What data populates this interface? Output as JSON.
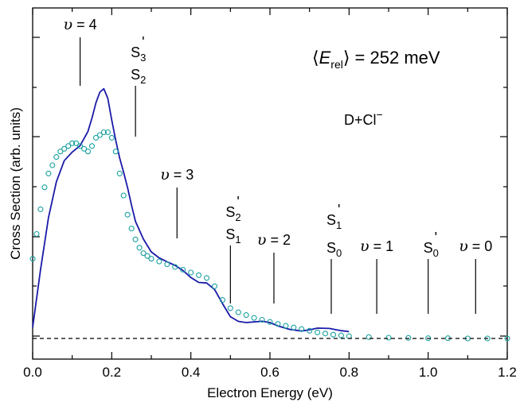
{
  "chart_data": {
    "type": "line",
    "xlabel": "Electron Energy (eV)",
    "ylabel": "Cross Section (arb. units)",
    "xlim": [
      0.0,
      1.2
    ],
    "ylim": [
      0,
      1
    ],
    "x_ticks": [
      "0.0",
      "0.2",
      "0.4",
      "0.6",
      "0.8",
      "1.0",
      "1.2"
    ],
    "y_ticklabels": "none",
    "grid": false,
    "legend": "none",
    "annotations": {
      "energy_prefix": "⟨",
      "energy_symbol": "E",
      "energy_sub": "rel",
      "energy_suffix": "⟩ = 252 meV",
      "reaction_base": "D+Cl",
      "reaction_sup": "−",
      "greek": "υ",
      "marks": [
        {
          "x": 0.12,
          "top": "v",
          "top_val": "4",
          "top_x": 0.12
        },
        {
          "x": 0.26,
          "stack": [
            [
              "S",
              "3",
              "'"
            ],
            [
              "S",
              "2",
              ""
            ]
          ]
        },
        {
          "x": 0.365,
          "top": "v",
          "top_val": "3",
          "top_x": 0.365
        },
        {
          "x": 0.5,
          "stack": [
            [
              "S",
              "2",
              "'"
            ],
            [
              "S",
              "1",
              ""
            ]
          ]
        },
        {
          "x": 0.61,
          "top": "v",
          "top_val": "2",
          "top_x": 0.61
        },
        {
          "x": 0.755,
          "stack": [
            [
              "S",
              "1",
              "'"
            ],
            [
              "S",
              "0",
              ""
            ]
          ]
        },
        {
          "x": 0.87,
          "top": "v",
          "top_val": "1",
          "top_x": 0.87
        },
        {
          "x": 1.0,
          "stack": [
            [
              "S",
              "0",
              "'"
            ]
          ]
        },
        {
          "x": 1.12,
          "top": "v",
          "top_val": "0",
          "top_x": 1.12
        }
      ]
    },
    "series": [
      {
        "style": "solid-line",
        "color": "#1a1aa8",
        "x": [
          0.0,
          0.02,
          0.04,
          0.06,
          0.08,
          0.1,
          0.12,
          0.14,
          0.15,
          0.16,
          0.17,
          0.18,
          0.19,
          0.2,
          0.21,
          0.22,
          0.23,
          0.24,
          0.25,
          0.26,
          0.28,
          0.3,
          0.32,
          0.34,
          0.36,
          0.38,
          0.4,
          0.42,
          0.44,
          0.46,
          0.48,
          0.5,
          0.52,
          0.54,
          0.56,
          0.58,
          0.6,
          0.62,
          0.65,
          0.68,
          0.7,
          0.72,
          0.75,
          0.78,
          0.8
        ],
        "y": [
          0.04,
          0.25,
          0.44,
          0.57,
          0.64,
          0.67,
          0.7,
          0.76,
          0.81,
          0.86,
          0.89,
          0.9,
          0.87,
          0.8,
          0.73,
          0.66,
          0.6,
          0.54,
          0.48,
          0.43,
          0.37,
          0.32,
          0.29,
          0.27,
          0.26,
          0.25,
          0.23,
          0.21,
          0.2,
          0.17,
          0.12,
          0.08,
          0.07,
          0.065,
          0.06,
          0.055,
          0.05,
          0.045,
          0.04,
          0.035,
          0.033,
          0.031,
          0.028,
          0.026,
          0.025
        ]
      },
      {
        "style": "open-circles",
        "color": "#1aa0a0",
        "x": [
          0.0,
          0.01,
          0.02,
          0.03,
          0.04,
          0.05,
          0.06,
          0.07,
          0.08,
          0.09,
          0.1,
          0.11,
          0.12,
          0.13,
          0.14,
          0.15,
          0.16,
          0.17,
          0.18,
          0.19,
          0.2,
          0.21,
          0.22,
          0.23,
          0.24,
          0.25,
          0.26,
          0.27,
          0.28,
          0.29,
          0.3,
          0.32,
          0.34,
          0.36,
          0.38,
          0.4,
          0.42,
          0.44,
          0.46,
          0.48,
          0.5,
          0.52,
          0.54,
          0.56,
          0.58,
          0.6,
          0.62,
          0.64,
          0.66,
          0.68,
          0.7,
          0.72,
          0.74,
          0.76,
          0.78,
          0.8,
          0.85,
          0.9,
          0.95,
          1.0,
          1.05,
          1.1,
          1.15,
          1.2
        ],
        "y": [
          0.29,
          0.38,
          0.47,
          0.55,
          0.6,
          0.63,
          0.66,
          0.68,
          0.69,
          0.7,
          0.71,
          0.71,
          0.7,
          0.69,
          0.68,
          0.7,
          0.73,
          0.74,
          0.75,
          0.75,
          0.73,
          0.68,
          0.6,
          0.52,
          0.45,
          0.4,
          0.36,
          0.33,
          0.31,
          0.3,
          0.29,
          0.28,
          0.27,
          0.26,
          0.25,
          0.24,
          0.23,
          0.22,
          0.19,
          0.14,
          0.11,
          0.095,
          0.085,
          0.075,
          0.068,
          0.06,
          0.053,
          0.046,
          0.04,
          0.034,
          0.028,
          0.022,
          0.018,
          0.014,
          0.011,
          0.008,
          0.005,
          0.003,
          0.002,
          0.001,
          0.001,
          0.0,
          0.0,
          0.0
        ]
      },
      {
        "style": "dashed-baseline",
        "color": "#000000",
        "x": [
          0.0,
          1.2
        ],
        "y": [
          0.0,
          0.0
        ]
      }
    ]
  }
}
